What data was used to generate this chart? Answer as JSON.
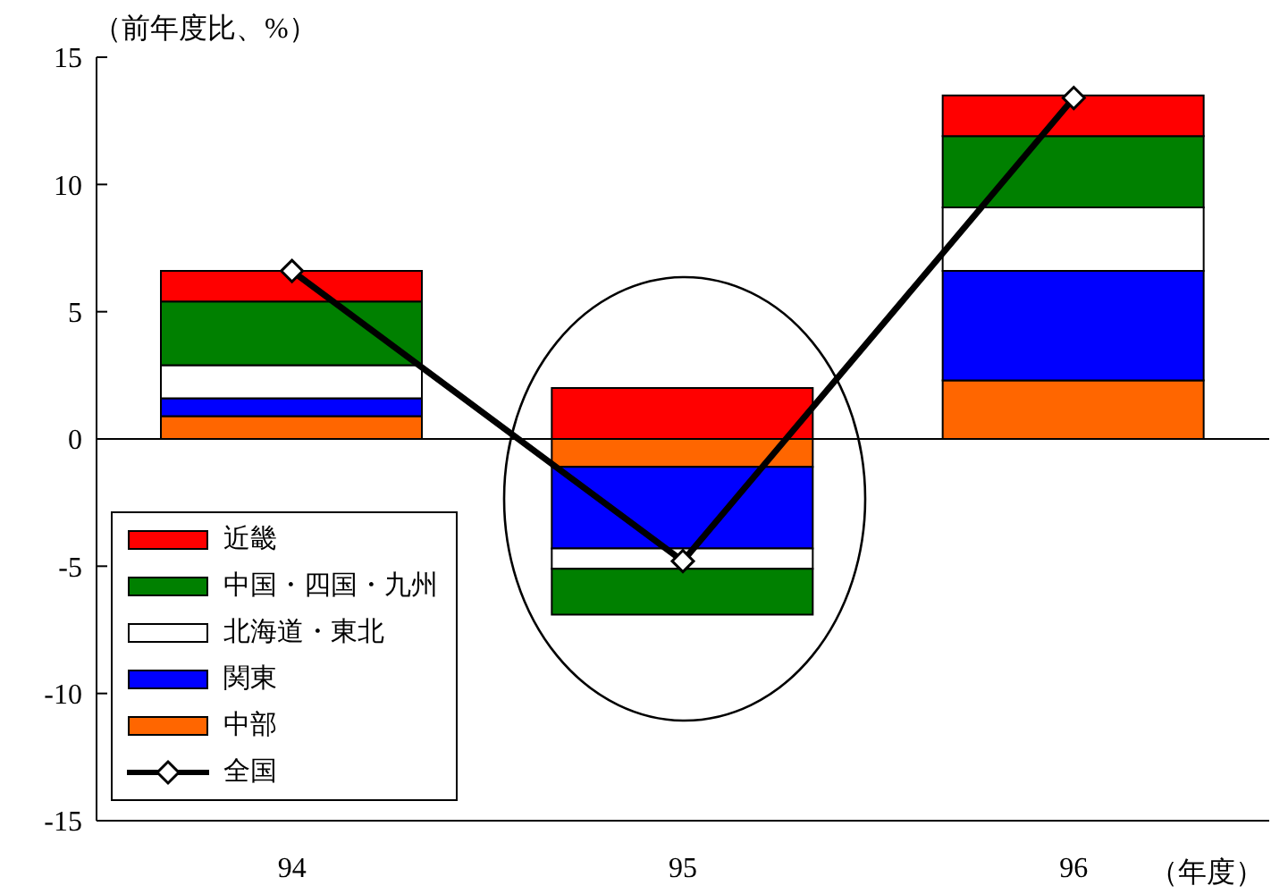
{
  "chart_data": {
    "type": "bar",
    "stacked": true,
    "ylabel": "（前年度比、%）",
    "xlabel": "（年度）",
    "categories": [
      "94",
      "95",
      "96"
    ],
    "series": [
      {
        "name": "中部",
        "color": "#ff6600",
        "values": [
          0.9,
          -1.1,
          2.3
        ]
      },
      {
        "name": "関東",
        "color": "#0000ff",
        "values": [
          0.7,
          -3.2,
          4.3
        ]
      },
      {
        "name": "北海道・東北",
        "color": "#ffffff",
        "values": [
          1.3,
          -0.8,
          2.5
        ]
      },
      {
        "name": "中国・四国・九州",
        "color": "#008000",
        "values": [
          2.5,
          -1.8,
          2.8
        ]
      },
      {
        "name": "近畿",
        "color": "#ff0000",
        "values": [
          1.2,
          2.0,
          1.6
        ]
      },
      {
        "name": "全国",
        "type": "line",
        "color": "#000000",
        "marker": "diamond",
        "values": [
          6.6,
          -4.8,
          13.4
        ]
      }
    ],
    "ylim": [
      -15,
      15
    ],
    "yticks": [
      -15,
      -10,
      -5,
      0,
      5,
      10,
      15
    ],
    "ref_lines": [
      {
        "axis": "y",
        "value": 0
      }
    ],
    "grid": false,
    "legend": "bottom left"
  }
}
